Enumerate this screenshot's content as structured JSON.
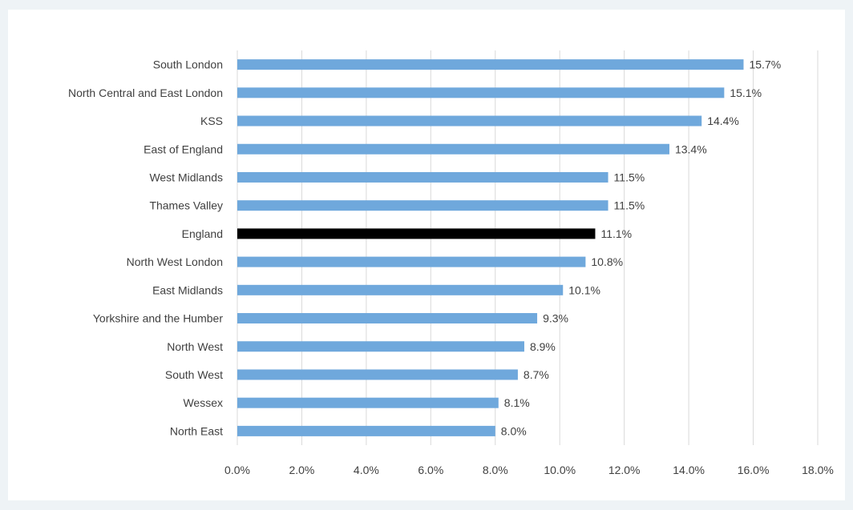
{
  "chart_data": {
    "type": "bar",
    "orientation": "horizontal",
    "title": "",
    "xlabel": "",
    "ylabel": "",
    "categories": [
      "South London",
      "North Central and East London",
      "KSS",
      "East of England",
      "West Midlands",
      "Thames Valley",
      "England",
      "North West London",
      "East Midlands",
      "Yorkshire and the Humber",
      "North West",
      "South West",
      "Wessex",
      "North East"
    ],
    "values": [
      15.7,
      15.1,
      14.4,
      13.4,
      11.5,
      11.5,
      11.1,
      10.8,
      10.1,
      9.3,
      8.9,
      8.7,
      8.1,
      8.0
    ],
    "value_labels": [
      "15.7%",
      "15.1%",
      "14.4%",
      "13.4%",
      "11.5%",
      "11.5%",
      "11.1%",
      "10.8%",
      "10.1%",
      "9.3%",
      "8.9%",
      "8.7%",
      "8.1%",
      "8.0%"
    ],
    "xlim": [
      0,
      18
    ],
    "x_ticks": [
      "0.0%",
      "2.0%",
      "4.0%",
      "6.0%",
      "8.0%",
      "10.0%",
      "12.0%",
      "14.0%",
      "16.0%",
      "18.0%"
    ],
    "grid": "vertical",
    "legend": "none",
    "highlight_category": "England",
    "colors": {
      "bar": "#6fa8dc",
      "highlight": "#000000",
      "grid": "#d9d9d9",
      "text": "#404040",
      "background": "#eef3f6",
      "panel": "#ffffff"
    }
  }
}
